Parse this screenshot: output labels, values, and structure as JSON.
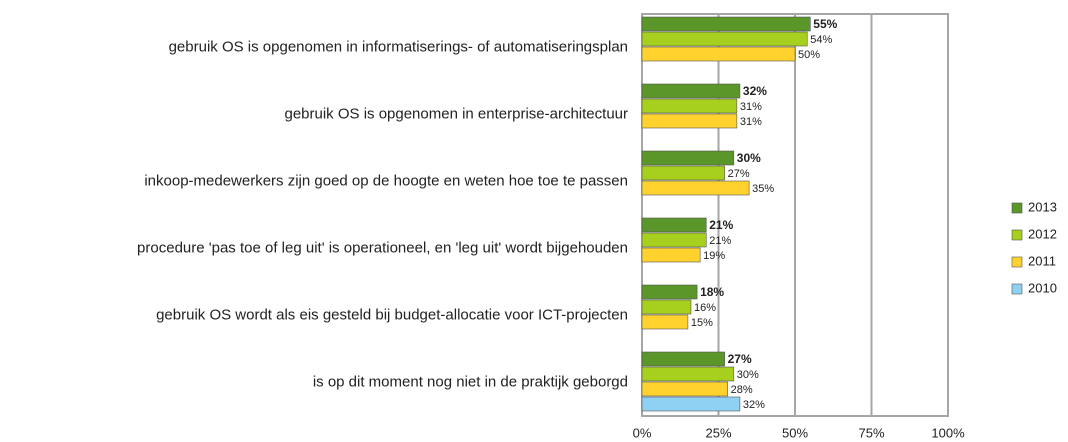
{
  "chart_data": {
    "type": "bar",
    "orientation": "horizontal",
    "categories": [
      "gebruik OS is opgenomen in informatiserings- of automatiseringsplan",
      "gebruik OS is opgenomen in enterprise-architectuur",
      "inkoop-medewerkers zijn goed op de hoogte en weten hoe toe te passen",
      "procedure 'pas toe of leg uit' is operationeel, en 'leg uit' wordt bijgehouden",
      "gebruik OS wordt als eis gesteld bij budget-allocatie voor ICT-projecten",
      "is op dit moment nog niet in de praktijk geborgd"
    ],
    "series": [
      {
        "name": "2013",
        "color": "#5a962a",
        "values": [
          55,
          32,
          30,
          21,
          18,
          27
        ],
        "value_labels": [
          "55%",
          "32%",
          "30%",
          "21%",
          "18%",
          "27%"
        ]
      },
      {
        "name": "2012",
        "color": "#a6cf1e",
        "values": [
          54,
          31,
          27,
          21,
          16,
          30
        ],
        "value_labels": [
          "54%",
          "31%",
          "27%",
          "21%",
          "16%",
          "30%"
        ]
      },
      {
        "name": "2011",
        "color": "#ffd22e",
        "values": [
          50,
          31,
          35,
          19,
          15,
          28
        ],
        "value_labels": [
          "50%",
          "31%",
          "35%",
          "19%",
          "15%",
          "28%"
        ]
      },
      {
        "name": "2010",
        "color": "#8fd1f3",
        "values": [
          null,
          null,
          null,
          null,
          null,
          32
        ],
        "value_labels": [
          null,
          null,
          null,
          null,
          null,
          "32%"
        ]
      }
    ],
    "xlim": [
      0,
      100
    ],
    "xticks": [
      {
        "value": 0,
        "label": "0%"
      },
      {
        "value": 25,
        "label": "25%"
      },
      {
        "value": 50,
        "label": "50%"
      },
      {
        "value": 75,
        "label": "75%"
      },
      {
        "value": 100,
        "label": "100%"
      }
    ],
    "grid": true,
    "legend": "right"
  }
}
